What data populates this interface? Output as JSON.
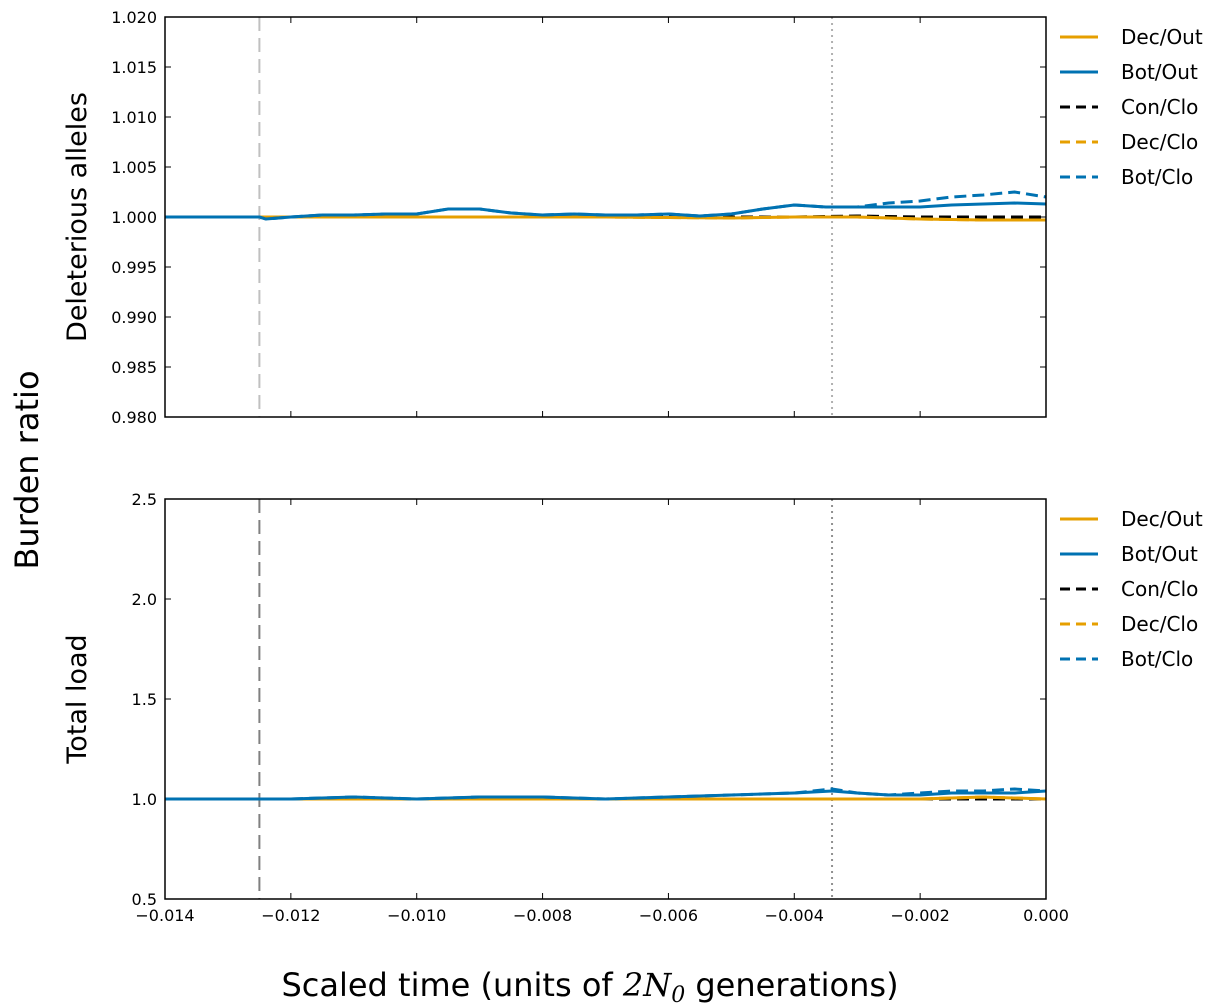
{
  "figure": {
    "ylabel": "Burden ratio",
    "xlabel_prefix": "Scaled time (units of ",
    "xlabel_math": "2N",
    "xlabel_sub": "0",
    "xlabel_suffix": " generations)"
  },
  "series_styles": {
    "Dec/Out": {
      "color": "#E69F00",
      "dash": "solid"
    },
    "Bot/Out": {
      "color": "#0072B2",
      "dash": "solid"
    },
    "Con/Clo": {
      "color": "#000000",
      "dash": "dashed"
    },
    "Dec/Clo": {
      "color": "#E69F00",
      "dash": "dashed"
    },
    "Bot/Clo": {
      "color": "#0072B2",
      "dash": "dashed"
    }
  },
  "chart_data": [
    {
      "type": "line",
      "ylabel": "Deleterious alleles",
      "xlim": [
        -0.014,
        0.0
      ],
      "ylim": [
        0.98,
        1.02
      ],
      "xticks": [
        "−0.014",
        "−0.012",
        "−0.010",
        "−0.008",
        "−0.006",
        "−0.004",
        "−0.002",
        "0.000"
      ],
      "yticks": [
        "0.980",
        "0.985",
        "0.990",
        "0.995",
        "1.000",
        "1.005",
        "1.010",
        "1.015",
        "1.020"
      ],
      "show_xtick_labels": false,
      "vlines": [
        {
          "x": -0.0125,
          "style": "dashed",
          "color": "#c0c0c0"
        },
        {
          "x": -0.0034,
          "style": "dotted",
          "color": "#b0b0b0"
        }
      ],
      "legend_position": "outside-right",
      "legend": [
        "Dec/Out",
        "Bot/Out",
        "Con/Clo",
        "Dec/Clo",
        "Bot/Clo"
      ],
      "series": [
        {
          "name": "Con/Clo",
          "x": [
            -0.014,
            -0.0125,
            -0.011,
            -0.009,
            -0.007,
            -0.005,
            -0.004,
            -0.003,
            -0.002,
            -0.001,
            0.0
          ],
          "y": [
            1.0,
            1.0,
            1.0,
            1.0,
            1.0,
            1.0,
            1.0,
            1.0001,
            1.0,
            1.0,
            1.0
          ]
        },
        {
          "name": "Dec/Clo",
          "x": [
            -0.014,
            -0.0125,
            -0.011,
            -0.009,
            -0.007,
            -0.005,
            -0.004,
            -0.003,
            -0.002,
            -0.001,
            0.0
          ],
          "y": [
            1.0,
            1.0,
            1.0,
            1.0,
            1.0,
            0.9999,
            1.0,
            1.0,
            0.9998,
            0.9997,
            0.9997
          ]
        },
        {
          "name": "Dec/Out",
          "x": [
            -0.014,
            -0.0125,
            -0.011,
            -0.009,
            -0.007,
            -0.005,
            -0.004,
            -0.003,
            -0.002,
            -0.001,
            0.0
          ],
          "y": [
            1.0,
            1.0,
            1.0,
            1.0,
            1.0,
            0.9999,
            1.0,
            1.0,
            0.9998,
            0.9997,
            0.9997
          ]
        },
        {
          "name": "Bot/Clo",
          "x": [
            -0.014,
            -0.0125,
            -0.0124,
            -0.012,
            -0.0115,
            -0.011,
            -0.0105,
            -0.01,
            -0.0095,
            -0.009,
            -0.0085,
            -0.008,
            -0.0075,
            -0.007,
            -0.0065,
            -0.006,
            -0.0055,
            -0.005,
            -0.0045,
            -0.004,
            -0.0035,
            -0.003,
            -0.0025,
            -0.002,
            -0.0015,
            -0.001,
            -0.0005,
            0.0
          ],
          "y": [
            1.0,
            1.0,
            0.9998,
            1.0,
            1.0002,
            1.0002,
            1.0003,
            1.0003,
            1.0008,
            1.0008,
            1.0004,
            1.0002,
            1.0003,
            1.0002,
            1.0002,
            1.0003,
            1.0001,
            1.0003,
            1.0008,
            1.0012,
            1.001,
            1.001,
            1.0014,
            1.0016,
            1.002,
            1.0022,
            1.0025,
            1.002
          ]
        },
        {
          "name": "Bot/Out",
          "x": [
            -0.014,
            -0.0125,
            -0.0124,
            -0.012,
            -0.0115,
            -0.011,
            -0.0105,
            -0.01,
            -0.0095,
            -0.009,
            -0.0085,
            -0.008,
            -0.0075,
            -0.007,
            -0.0065,
            -0.006,
            -0.0055,
            -0.005,
            -0.0045,
            -0.004,
            -0.0035,
            -0.003,
            -0.0025,
            -0.002,
            -0.0015,
            -0.001,
            -0.0005,
            0.0
          ],
          "y": [
            1.0,
            1.0,
            0.9998,
            1.0,
            1.0002,
            1.0002,
            1.0003,
            1.0003,
            1.0008,
            1.0008,
            1.0004,
            1.0002,
            1.0003,
            1.0002,
            1.0002,
            1.0003,
            1.0001,
            1.0003,
            1.0008,
            1.0012,
            1.001,
            1.001,
            1.001,
            1.001,
            1.0012,
            1.0013,
            1.0014,
            1.0013
          ]
        }
      ]
    },
    {
      "type": "line",
      "ylabel": "Total load",
      "xlim": [
        -0.014,
        0.0
      ],
      "ylim": [
        0.5,
        2.5
      ],
      "xticks": [
        "−0.014",
        "−0.012",
        "−0.010",
        "−0.008",
        "−0.006",
        "−0.004",
        "−0.002",
        "0.000"
      ],
      "yticks": [
        "0.5",
        "1.0",
        "1.5",
        "2.0",
        "2.5"
      ],
      "show_xtick_labels": true,
      "vlines": [
        {
          "x": -0.0125,
          "style": "dashed",
          "color": "#808080"
        },
        {
          "x": -0.0034,
          "style": "dotted",
          "color": "#909090"
        }
      ],
      "legend_position": "outside-right",
      "legend": [
        "Dec/Out",
        "Bot/Out",
        "Con/Clo",
        "Dec/Clo",
        "Bot/Clo"
      ],
      "series": [
        {
          "name": "Con/Clo",
          "x": [
            -0.014,
            -0.012,
            -0.01,
            -0.008,
            -0.006,
            -0.004,
            -0.002,
            0.0
          ],
          "y": [
            1.0,
            1.0,
            1.0,
            1.0,
            1.0,
            1.0,
            1.0,
            1.0
          ]
        },
        {
          "name": "Dec/Clo",
          "x": [
            -0.014,
            -0.012,
            -0.01,
            -0.008,
            -0.006,
            -0.004,
            -0.003,
            -0.002,
            -0.001,
            0.0
          ],
          "y": [
            1.0,
            1.0,
            1.0,
            1.0,
            1.0,
            1.0,
            1.0,
            1.0,
            1.01,
            1.0
          ]
        },
        {
          "name": "Dec/Out",
          "x": [
            -0.014,
            -0.012,
            -0.01,
            -0.008,
            -0.006,
            -0.004,
            -0.003,
            -0.002,
            -0.001,
            0.0
          ],
          "y": [
            1.0,
            1.0,
            1.0,
            1.0,
            1.0,
            1.0,
            1.0,
            1.0,
            1.01,
            1.0
          ]
        },
        {
          "name": "Bot/Clo",
          "x": [
            -0.014,
            -0.013,
            -0.012,
            -0.011,
            -0.01,
            -0.009,
            -0.008,
            -0.007,
            -0.006,
            -0.005,
            -0.004,
            -0.0034,
            -0.003,
            -0.0025,
            -0.002,
            -0.0015,
            -0.001,
            -0.0005,
            0.0
          ],
          "y": [
            1.0,
            1.0,
            1.0,
            1.01,
            1.0,
            1.01,
            1.01,
            1.0,
            1.01,
            1.02,
            1.03,
            1.05,
            1.03,
            1.02,
            1.03,
            1.04,
            1.04,
            1.05,
            1.04
          ]
        },
        {
          "name": "Bot/Out",
          "x": [
            -0.014,
            -0.013,
            -0.012,
            -0.011,
            -0.01,
            -0.009,
            -0.008,
            -0.007,
            -0.006,
            -0.005,
            -0.004,
            -0.0034,
            -0.003,
            -0.0025,
            -0.002,
            -0.0015,
            -0.001,
            -0.0005,
            0.0
          ],
          "y": [
            1.0,
            1.0,
            1.0,
            1.01,
            1.0,
            1.01,
            1.01,
            1.0,
            1.01,
            1.02,
            1.03,
            1.04,
            1.03,
            1.02,
            1.02,
            1.03,
            1.03,
            1.03,
            1.04
          ]
        }
      ]
    }
  ]
}
